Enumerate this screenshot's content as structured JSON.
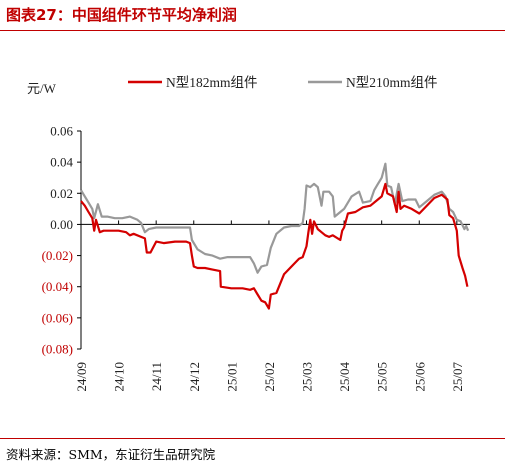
{
  "header": {
    "title": "图表27：中国组件环节平均净利润"
  },
  "footer": {
    "source": "资料来源：SMM，东证衍生品研究院"
  },
  "colors": {
    "series1": "#d40000",
    "series2": "#999999",
    "negative_tick": "#c00000",
    "brand": "#c00000"
  },
  "chart_data": {
    "type": "line",
    "yunit": "元/W",
    "ylim": [
      -0.08,
      0.06
    ],
    "yticks": [
      {
        "value": 0.06,
        "label": "0.06"
      },
      {
        "value": 0.04,
        "label": "0.04"
      },
      {
        "value": 0.02,
        "label": "0.02"
      },
      {
        "value": 0.0,
        "label": "0.00"
      },
      {
        "value": -0.02,
        "label": "(0.02)"
      },
      {
        "value": -0.04,
        "label": "(0.04)"
      },
      {
        "value": -0.06,
        "label": "(0.06)"
      },
      {
        "value": -0.08,
        "label": "(0.08)"
      }
    ],
    "xlim": [
      0,
      10.35
    ],
    "xticks": [
      {
        "value": 0,
        "label": "24/09"
      },
      {
        "value": 1,
        "label": "24/10"
      },
      {
        "value": 2,
        "label": "24/11"
      },
      {
        "value": 3,
        "label": "24/12"
      },
      {
        "value": 4,
        "label": "25/01"
      },
      {
        "value": 5,
        "label": "25/02"
      },
      {
        "value": 6,
        "label": "25/03"
      },
      {
        "value": 7,
        "label": "25/04"
      },
      {
        "value": 8,
        "label": "25/05"
      },
      {
        "value": 9,
        "label": "25/06"
      },
      {
        "value": 10,
        "label": "25/07"
      }
    ],
    "legend": "top-center",
    "series": [
      {
        "name": "N型182mm组件",
        "color": "#d40000",
        "points": [
          [
            0.0,
            0.015
          ],
          [
            0.1,
            0.012
          ],
          [
            0.2,
            0.008
          ],
          [
            0.3,
            0.004
          ],
          [
            0.35,
            -0.004
          ],
          [
            0.4,
            0.003
          ],
          [
            0.5,
            -0.005
          ],
          [
            0.6,
            -0.004
          ],
          [
            0.8,
            -0.004
          ],
          [
            1.0,
            -0.004
          ],
          [
            1.2,
            -0.005
          ],
          [
            1.3,
            -0.007
          ],
          [
            1.4,
            -0.006
          ],
          [
            1.6,
            -0.008
          ],
          [
            1.7,
            -0.009
          ],
          [
            1.75,
            -0.018
          ],
          [
            1.85,
            -0.018
          ],
          [
            2.0,
            -0.011
          ],
          [
            2.2,
            -0.012
          ],
          [
            2.5,
            -0.011
          ],
          [
            2.8,
            -0.011
          ],
          [
            2.9,
            -0.012
          ],
          [
            2.95,
            -0.02
          ],
          [
            3.0,
            -0.027
          ],
          [
            3.1,
            -0.028
          ],
          [
            3.3,
            -0.028
          ],
          [
            3.5,
            -0.029
          ],
          [
            3.7,
            -0.03
          ],
          [
            3.72,
            -0.04
          ],
          [
            4.0,
            -0.041
          ],
          [
            4.3,
            -0.041
          ],
          [
            4.5,
            -0.042
          ],
          [
            4.6,
            -0.041
          ],
          [
            4.7,
            -0.045
          ],
          [
            4.8,
            -0.049
          ],
          [
            4.9,
            -0.05
          ],
          [
            5.0,
            -0.054
          ],
          [
            5.05,
            -0.045
          ],
          [
            5.2,
            -0.044
          ],
          [
            5.4,
            -0.032
          ],
          [
            5.6,
            -0.027
          ],
          [
            5.8,
            -0.022
          ],
          [
            5.9,
            -0.021
          ],
          [
            6.0,
            -0.014
          ],
          [
            6.05,
            -0.005
          ],
          [
            6.1,
            0.003
          ],
          [
            6.15,
            -0.006
          ],
          [
            6.2,
            0.002
          ],
          [
            6.3,
            -0.003
          ],
          [
            6.4,
            -0.005
          ],
          [
            6.5,
            -0.007
          ],
          [
            6.6,
            -0.008
          ],
          [
            6.7,
            -0.007
          ],
          [
            6.9,
            -0.01
          ],
          [
            6.95,
            -0.004
          ],
          [
            7.0,
            -0.002
          ],
          [
            7.1,
            0.007
          ],
          [
            7.3,
            0.008
          ],
          [
            7.5,
            0.011
          ],
          [
            7.7,
            0.012
          ],
          [
            7.9,
            0.016
          ],
          [
            8.0,
            0.018
          ],
          [
            8.1,
            0.026
          ],
          [
            8.15,
            0.02
          ],
          [
            8.3,
            0.018
          ],
          [
            8.4,
            0.008
          ],
          [
            8.45,
            0.021
          ],
          [
            8.5,
            0.01
          ],
          [
            8.6,
            0.012
          ],
          [
            8.8,
            0.01
          ],
          [
            9.0,
            0.007
          ],
          [
            9.2,
            0.012
          ],
          [
            9.4,
            0.017
          ],
          [
            9.6,
            0.019
          ],
          [
            9.75,
            0.016
          ],
          [
            9.8,
            0.006
          ],
          [
            9.9,
            0.004
          ],
          [
            10.0,
            -0.004
          ],
          [
            10.05,
            -0.02
          ],
          [
            10.15,
            -0.028
          ],
          [
            10.22,
            -0.033
          ],
          [
            10.28,
            -0.04
          ]
        ]
      },
      {
        "name": "N型210mm组件",
        "color": "#999999",
        "points": [
          [
            0.0,
            0.022
          ],
          [
            0.1,
            0.018
          ],
          [
            0.2,
            0.014
          ],
          [
            0.3,
            0.01
          ],
          [
            0.35,
            0.004
          ],
          [
            0.45,
            0.013
          ],
          [
            0.55,
            0.005
          ],
          [
            0.7,
            0.005
          ],
          [
            0.9,
            0.004
          ],
          [
            1.1,
            0.004
          ],
          [
            1.3,
            0.005
          ],
          [
            1.5,
            0.003
          ],
          [
            1.6,
            0.001
          ],
          [
            1.7,
            -0.005
          ],
          [
            1.8,
            -0.003
          ],
          [
            2.0,
            -0.002
          ],
          [
            2.3,
            -0.002
          ],
          [
            2.6,
            -0.002
          ],
          [
            2.9,
            -0.002
          ],
          [
            2.95,
            -0.01
          ],
          [
            3.1,
            -0.016
          ],
          [
            3.3,
            -0.019
          ],
          [
            3.5,
            -0.02
          ],
          [
            3.7,
            -0.022
          ],
          [
            3.9,
            -0.021
          ],
          [
            4.1,
            -0.021
          ],
          [
            4.3,
            -0.021
          ],
          [
            4.5,
            -0.021
          ],
          [
            4.6,
            -0.025
          ],
          [
            4.7,
            -0.031
          ],
          [
            4.8,
            -0.027
          ],
          [
            4.95,
            -0.026
          ],
          [
            5.05,
            -0.015
          ],
          [
            5.2,
            -0.006
          ],
          [
            5.4,
            -0.002
          ],
          [
            5.6,
            -0.001
          ],
          [
            5.8,
            -0.001
          ],
          [
            5.9,
            0.001
          ],
          [
            5.95,
            0.01
          ],
          [
            6.0,
            0.025
          ],
          [
            6.1,
            0.024
          ],
          [
            6.2,
            0.026
          ],
          [
            6.3,
            0.024
          ],
          [
            6.4,
            0.012
          ],
          [
            6.45,
            0.021
          ],
          [
            6.6,
            0.021
          ],
          [
            6.7,
            0.018
          ],
          [
            6.75,
            0.005
          ],
          [
            6.9,
            0.008
          ],
          [
            7.0,
            0.01
          ],
          [
            7.2,
            0.018
          ],
          [
            7.4,
            0.021
          ],
          [
            7.5,
            0.014
          ],
          [
            7.7,
            0.015
          ],
          [
            7.8,
            0.022
          ],
          [
            7.9,
            0.026
          ],
          [
            8.0,
            0.03
          ],
          [
            8.1,
            0.039
          ],
          [
            8.15,
            0.025
          ],
          [
            8.25,
            0.024
          ],
          [
            8.35,
            0.013
          ],
          [
            8.45,
            0.026
          ],
          [
            8.55,
            0.015
          ],
          [
            8.7,
            0.016
          ],
          [
            8.9,
            0.016
          ],
          [
            9.0,
            0.011
          ],
          [
            9.2,
            0.015
          ],
          [
            9.4,
            0.019
          ],
          [
            9.6,
            0.021
          ],
          [
            9.7,
            0.018
          ],
          [
            9.8,
            0.01
          ],
          [
            9.9,
            0.008
          ],
          [
            10.0,
            0.003
          ],
          [
            10.1,
            0.002
          ],
          [
            10.2,
            -0.003
          ],
          [
            10.25,
            -0.001
          ],
          [
            10.3,
            -0.004
          ]
        ]
      }
    ]
  }
}
